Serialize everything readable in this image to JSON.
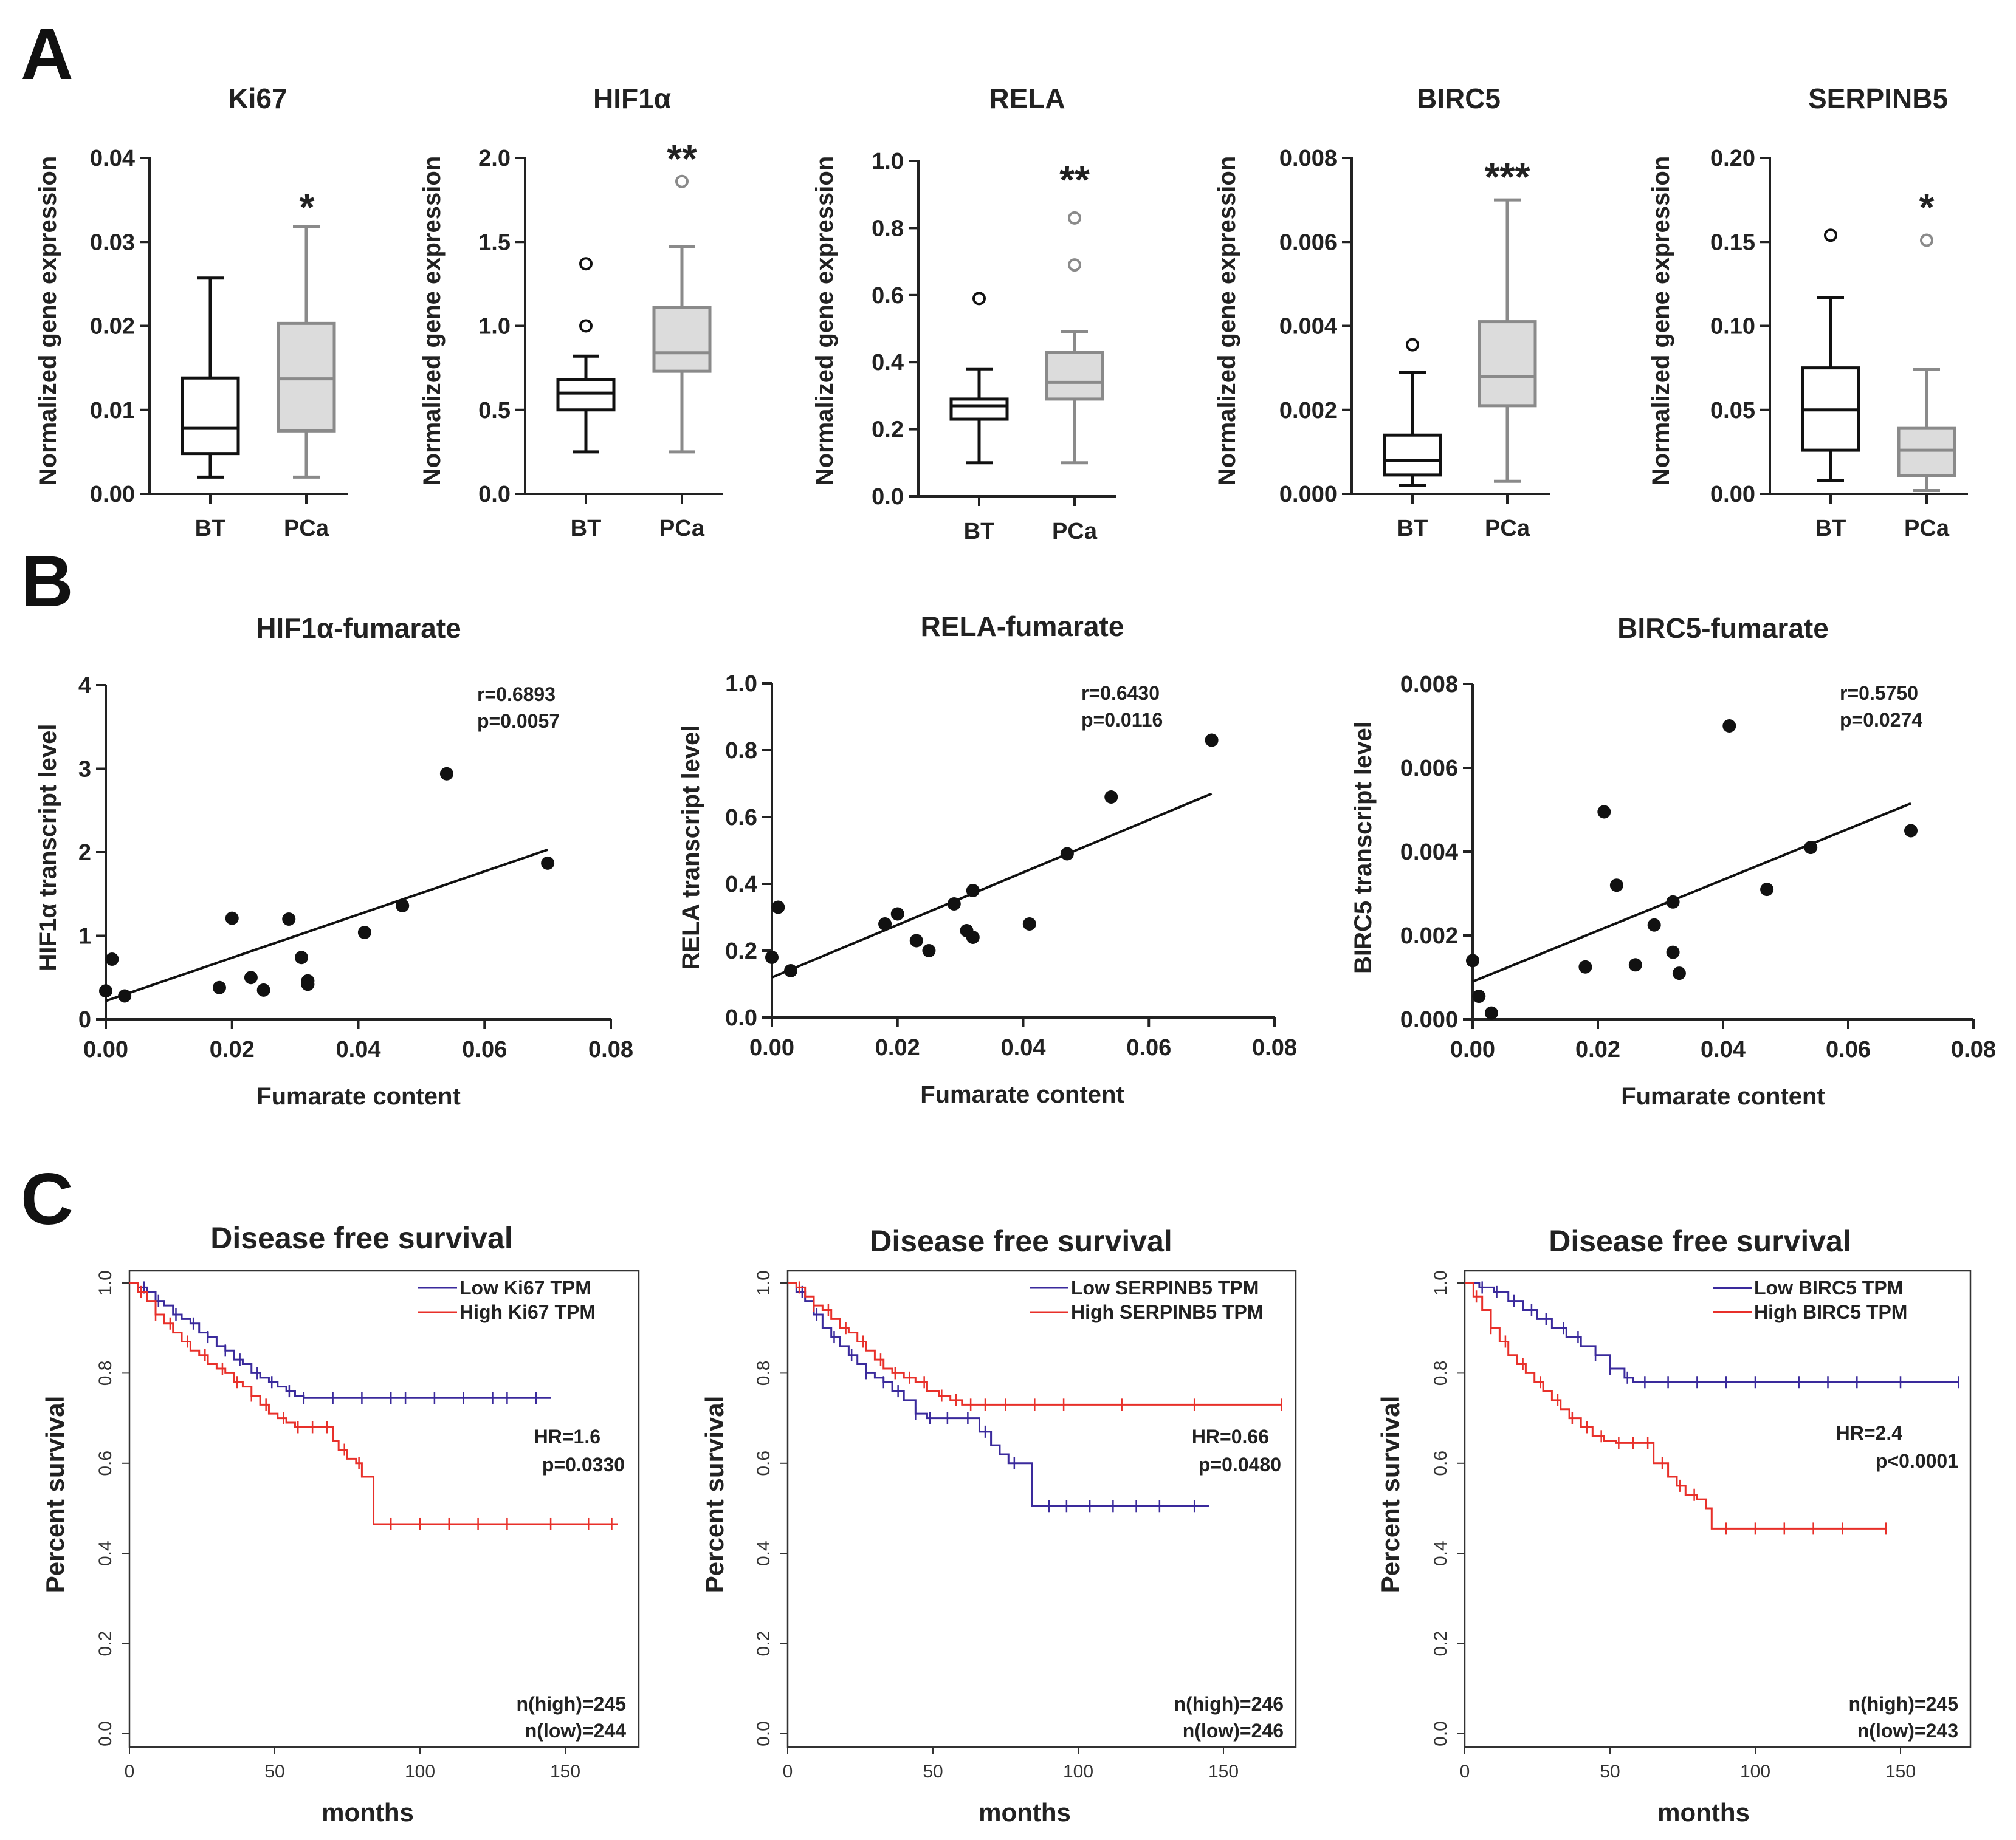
{
  "panel_letters": [
    "A",
    "B",
    "C"
  ],
  "chart_data": [
    {
      "type": "box",
      "panel": "A",
      "title": "Ki67",
      "ylabel": "Normalized gene expression",
      "categories": [
        "BT",
        "PCa"
      ],
      "ylim": [
        0,
        0.04
      ],
      "yticks": [
        "0.00",
        "0.01",
        "0.02",
        "0.03",
        "0.04"
      ],
      "significance": "*",
      "boxes": [
        {
          "name": "BT",
          "min": 0.002,
          "q1": 0.0048,
          "median": 0.0078,
          "q3": 0.0138,
          "max": 0.0257,
          "outliers": [],
          "color": "#111111",
          "fill": "#ffffff"
        },
        {
          "name": "PCa",
          "min": 0.002,
          "q1": 0.0075,
          "median": 0.0137,
          "q3": 0.0203,
          "max": 0.0318,
          "outliers": [],
          "color": "#8a8a8a",
          "fill": "#dcdcdc"
        }
      ]
    },
    {
      "type": "box",
      "panel": "A",
      "title": "HIF1α",
      "ylabel": "Normalized gene expression",
      "categories": [
        "BT",
        "PCa"
      ],
      "ylim": [
        0,
        2.0
      ],
      "yticks": [
        "0.0",
        "0.5",
        "1.0",
        "1.5",
        "2.0"
      ],
      "significance": "**",
      "boxes": [
        {
          "name": "BT",
          "min": 0.25,
          "q1": 0.5,
          "median": 0.6,
          "q3": 0.68,
          "max": 0.82,
          "outliers": [
            1.0,
            1.37
          ],
          "color": "#111111",
          "fill": "#ffffff"
        },
        {
          "name": "PCa",
          "min": 0.25,
          "q1": 0.73,
          "median": 0.84,
          "q3": 1.11,
          "max": 1.47,
          "outliers": [
            1.86
          ],
          "color": "#8a8a8a",
          "fill": "#dcdcdc"
        }
      ]
    },
    {
      "type": "box",
      "panel": "A",
      "title": "RELA",
      "ylabel": "Normalized gene expression",
      "categories": [
        "BT",
        "PCa"
      ],
      "ylim": [
        0,
        1.0
      ],
      "yticks": [
        "0.0",
        "0.2",
        "0.4",
        "0.6",
        "0.8",
        "1.0"
      ],
      "significance": "**",
      "boxes": [
        {
          "name": "BT",
          "min": 0.1,
          "q1": 0.23,
          "median": 0.27,
          "q3": 0.29,
          "max": 0.38,
          "outliers": [
            0.59
          ],
          "color": "#111111",
          "fill": "#ffffff"
        },
        {
          "name": "PCa",
          "min": 0.1,
          "q1": 0.29,
          "median": 0.34,
          "q3": 0.43,
          "max": 0.49,
          "outliers": [
            0.69,
            0.83
          ],
          "color": "#8a8a8a",
          "fill": "#dcdcdc"
        }
      ]
    },
    {
      "type": "box",
      "panel": "A",
      "title": "BIRC5",
      "ylabel": "Normalized gene expression",
      "categories": [
        "BT",
        "PCa"
      ],
      "ylim": [
        0,
        0.008
      ],
      "yticks": [
        "0.000",
        "0.002",
        "0.004",
        "0.006",
        "0.008"
      ],
      "significance": "***",
      "boxes": [
        {
          "name": "BT",
          "min": 0.0002,
          "q1": 0.00045,
          "median": 0.0008,
          "q3": 0.0014,
          "max": 0.0029,
          "outliers": [
            0.00355
          ],
          "color": "#111111",
          "fill": "#ffffff"
        },
        {
          "name": "PCa",
          "min": 0.0003,
          "q1": 0.0021,
          "median": 0.0028,
          "q3": 0.0041,
          "max": 0.007,
          "outliers": [],
          "color": "#8a8a8a",
          "fill": "#dcdcdc"
        }
      ]
    },
    {
      "type": "box",
      "panel": "A",
      "title": "SERPINB5",
      "ylabel": "Normalized gene expression",
      "categories": [
        "BT",
        "PCa"
      ],
      "ylim": [
        0,
        0.2
      ],
      "yticks": [
        "0.00",
        "0.05",
        "0.10",
        "0.15",
        "0.20"
      ],
      "significance": "*",
      "boxes": [
        {
          "name": "BT",
          "min": 0.008,
          "q1": 0.026,
          "median": 0.05,
          "q3": 0.075,
          "max": 0.117,
          "outliers": [
            0.154
          ],
          "color": "#111111",
          "fill": "#ffffff"
        },
        {
          "name": "PCa",
          "min": 0.002,
          "q1": 0.011,
          "median": 0.026,
          "q3": 0.039,
          "max": 0.074,
          "outliers": [
            0.151
          ],
          "color": "#8a8a8a",
          "fill": "#dcdcdc"
        }
      ]
    },
    {
      "type": "scatter",
      "panel": "B",
      "title": "HIF1α-fumarate",
      "xlabel": "Fumarate content",
      "ylabel": "HIF1α transcript level",
      "xlim": [
        0,
        0.08
      ],
      "ylim": [
        0,
        4
      ],
      "xticks": [
        "0.00",
        "0.02",
        "0.04",
        "0.06",
        "0.08"
      ],
      "yticks": [
        "0",
        "1",
        "2",
        "3",
        "4"
      ],
      "stats": [
        "r=0.6893",
        "p=0.0057"
      ],
      "x": [
        0,
        0.001,
        0.003,
        0.018,
        0.02,
        0.023,
        0.025,
        0.029,
        0.031,
        0.032,
        0.032,
        0.041,
        0.047,
        0.054,
        0.07
      ],
      "y": [
        0.34,
        0.72,
        0.28,
        0.38,
        1.21,
        0.5,
        0.35,
        1.2,
        0.74,
        0.46,
        0.42,
        1.04,
        1.36,
        2.94,
        1.87
      ],
      "fit": [
        [
          0,
          0.22
        ],
        [
          0.07,
          2.03
        ]
      ]
    },
    {
      "type": "scatter",
      "panel": "B",
      "title": "RELA-fumarate",
      "xlabel": "Fumarate content",
      "ylabel": "RELA transcript level",
      "xlim": [
        0,
        0.08
      ],
      "ylim": [
        0,
        1.0
      ],
      "xticks": [
        "0.00",
        "0.02",
        "0.04",
        "0.06",
        "0.08"
      ],
      "yticks": [
        "0.0",
        "0.2",
        "0.4",
        "0.6",
        "0.8",
        "1.0"
      ],
      "stats": [
        "r=0.6430",
        "p=0.0116"
      ],
      "x": [
        0,
        0.001,
        0.003,
        0.018,
        0.02,
        0.023,
        0.025,
        0.029,
        0.031,
        0.032,
        0.032,
        0.041,
        0.047,
        0.054,
        0.07
      ],
      "y": [
        0.18,
        0.33,
        0.14,
        0.28,
        0.31,
        0.23,
        0.2,
        0.34,
        0.26,
        0.24,
        0.38,
        0.28,
        0.49,
        0.66,
        0.83
      ],
      "fit": [
        [
          0,
          0.12
        ],
        [
          0.07,
          0.67
        ]
      ]
    },
    {
      "type": "scatter",
      "panel": "B",
      "title": "BIRC5-fumarate",
      "xlabel": "Fumarate content",
      "ylabel": "BIRC5 transcript level",
      "xlim": [
        0,
        0.08
      ],
      "ylim": [
        0,
        0.008
      ],
      "xticks": [
        "0.00",
        "0.02",
        "0.04",
        "0.06",
        "0.08"
      ],
      "yticks": [
        "0.000",
        "0.002",
        "0.004",
        "0.006",
        "0.008"
      ],
      "stats": [
        "r=0.5750",
        "p=0.0274"
      ],
      "x": [
        0,
        0.001,
        0.003,
        0.018,
        0.021,
        0.023,
        0.026,
        0.029,
        0.032,
        0.032,
        0.033,
        0.041,
        0.047,
        0.054,
        0.07
      ],
      "y": [
        0.0014,
        0.00055,
        0.00015,
        0.00125,
        0.00495,
        0.0032,
        0.0013,
        0.00225,
        0.0028,
        0.0016,
        0.0011,
        0.007,
        0.0031,
        0.0041,
        0.0045
      ],
      "fit": [
        [
          0,
          0.0009
        ],
        [
          0.07,
          0.00515
        ]
      ]
    },
    {
      "type": "line",
      "panel": "C",
      "title": "Disease free survival",
      "xlabel": "months",
      "ylabel": "Percent survival",
      "xlim": [
        0,
        175
      ],
      "ylim": [
        0,
        1.05
      ],
      "xticks": [
        "0",
        "50",
        "100",
        "150"
      ],
      "yticks": [
        "0.0",
        "0.2",
        "0.4",
        "0.6",
        "0.8",
        "1.0"
      ],
      "legend": [
        "Low Ki67 TPM",
        "High Ki67 TPM"
      ],
      "legend_colors": [
        "#3a2a9c",
        "#e8302a"
      ],
      "stats": [
        "HR=1.6",
        "p=0.0330"
      ],
      "counts": [
        "n(high)=245",
        "n(low)=244"
      ],
      "series": [
        {
          "name": "Low Ki67 TPM",
          "color": "#3a2a9c",
          "x": [
            0,
            3,
            6,
            9,
            12,
            15,
            18,
            21,
            24,
            27,
            30,
            33,
            36,
            39,
            42,
            45,
            48,
            51,
            54,
            57,
            60,
            145
          ],
          "y": [
            1.0,
            0.99,
            0.98,
            0.96,
            0.95,
            0.93,
            0.92,
            0.91,
            0.89,
            0.88,
            0.86,
            0.85,
            0.83,
            0.82,
            0.8,
            0.79,
            0.78,
            0.77,
            0.76,
            0.75,
            0.745,
            0.745
          ],
          "censor": [
            5,
            10,
            16,
            22,
            27,
            33,
            38,
            44,
            49,
            55,
            60,
            70,
            80,
            90,
            95,
            105,
            115,
            125,
            130,
            140
          ]
        },
        {
          "name": "High Ki67 TPM",
          "color": "#e8302a",
          "x": [
            0,
            3,
            6,
            9,
            12,
            15,
            18,
            21,
            24,
            27,
            30,
            33,
            36,
            39,
            42,
            45,
            48,
            51,
            54,
            57,
            60,
            66,
            70,
            72,
            75,
            78,
            80,
            83,
            84,
            168
          ],
          "y": [
            1.0,
            0.98,
            0.96,
            0.93,
            0.91,
            0.89,
            0.87,
            0.85,
            0.84,
            0.82,
            0.81,
            0.8,
            0.78,
            0.77,
            0.75,
            0.73,
            0.71,
            0.7,
            0.69,
            0.68,
            0.68,
            0.68,
            0.65,
            0.63,
            0.61,
            0.6,
            0.57,
            0.57,
            0.465,
            0.465
          ],
          "censor": [
            4,
            9,
            14,
            20,
            26,
            32,
            37,
            42,
            47,
            53,
            58,
            63,
            68,
            74,
            79,
            90,
            100,
            110,
            120,
            130,
            145,
            158,
            166
          ]
        }
      ]
    },
    {
      "type": "line",
      "panel": "C",
      "title": "Disease free survival",
      "xlabel": "months",
      "ylabel": "Percent survival",
      "xlim": [
        0,
        175
      ],
      "ylim": [
        0,
        1.05
      ],
      "xticks": [
        "0",
        "50",
        "100",
        "150"
      ],
      "yticks": [
        "0.0",
        "0.2",
        "0.4",
        "0.6",
        "0.8",
        "1.0"
      ],
      "legend": [
        "Low SERPINB5 TPM",
        "High SERPINB5 TPM"
      ],
      "legend_colors": [
        "#3a2a9c",
        "#e8302a"
      ],
      "stats": [
        "HR=0.66",
        "p=0.0480"
      ],
      "counts": [
        "n(high)=246",
        "n(low)=246"
      ],
      "series": [
        {
          "name": "Low SERPINB5 TPM",
          "color": "#3a2a9c",
          "x": [
            0,
            3,
            6,
            9,
            12,
            15,
            18,
            21,
            24,
            27,
            30,
            33,
            36,
            40,
            44,
            48,
            52,
            56,
            60,
            66,
            70,
            73,
            76,
            80,
            84,
            145
          ],
          "y": [
            1.0,
            0.98,
            0.96,
            0.93,
            0.9,
            0.88,
            0.86,
            0.84,
            0.82,
            0.8,
            0.79,
            0.78,
            0.76,
            0.74,
            0.71,
            0.7,
            0.7,
            0.7,
            0.7,
            0.67,
            0.64,
            0.62,
            0.6,
            0.6,
            0.505,
            0.505
          ],
          "censor": [
            5,
            10,
            16,
            22,
            27,
            33,
            38,
            44,
            49,
            55,
            62,
            68,
            78,
            90,
            96,
            104,
            112,
            120,
            128,
            140
          ]
        },
        {
          "name": "High SERPINB5 TPM",
          "color": "#e8302a",
          "x": [
            0,
            3,
            6,
            9,
            12,
            15,
            18,
            21,
            24,
            27,
            30,
            33,
            36,
            40,
            44,
            48,
            52,
            56,
            60,
            170
          ],
          "y": [
            1.0,
            0.99,
            0.97,
            0.95,
            0.94,
            0.92,
            0.9,
            0.89,
            0.87,
            0.85,
            0.83,
            0.81,
            0.8,
            0.79,
            0.78,
            0.76,
            0.75,
            0.74,
            0.73,
            0.73
          ],
          "censor": [
            4,
            9,
            14,
            20,
            26,
            32,
            37,
            42,
            47,
            53,
            58,
            63,
            68,
            75,
            85,
            95,
            115,
            140,
            170
          ]
        }
      ]
    },
    {
      "type": "line",
      "panel": "C",
      "title": "Disease free survival",
      "xlabel": "months",
      "ylabel": "Percent survival",
      "xlim": [
        0,
        175
      ],
      "ylim": [
        0,
        1.05
      ],
      "xticks": [
        "0",
        "50",
        "100",
        "150"
      ],
      "yticks": [
        "0.0",
        "0.2",
        "0.4",
        "0.6",
        "0.8",
        "1.0"
      ],
      "legend": [
        "Low BIRC5 TPM",
        "High BIRC5 TPM"
      ],
      "legend_colors": [
        "#3a2a9c",
        "#e8302a"
      ],
      "stats": [
        "HR=2.4",
        "p<0.0001"
      ],
      "counts": [
        "n(high)=245",
        "n(low)=243"
      ],
      "series": [
        {
          "name": "Low BIRC5 TPM",
          "color": "#3a2a9c",
          "x": [
            0,
            5,
            10,
            15,
            20,
            25,
            30,
            35,
            40,
            45,
            50,
            55,
            58,
            60,
            170
          ],
          "y": [
            1.0,
            0.99,
            0.98,
            0.96,
            0.94,
            0.92,
            0.9,
            0.88,
            0.86,
            0.84,
            0.81,
            0.79,
            0.78,
            0.78,
            0.78
          ],
          "censor": [
            6,
            11,
            17,
            23,
            28,
            34,
            39,
            45,
            50,
            56,
            62,
            70,
            80,
            90,
            100,
            115,
            125,
            135,
            150,
            170
          ]
        },
        {
          "name": "High BIRC5 TPM",
          "color": "#e8302a",
          "x": [
            0,
            3,
            6,
            9,
            12,
            15,
            18,
            21,
            24,
            27,
            30,
            33,
            36,
            40,
            44,
            48,
            52,
            56,
            60,
            65,
            70,
            73,
            76,
            80,
            83,
            85,
            145
          ],
          "y": [
            1.0,
            0.97,
            0.94,
            0.9,
            0.87,
            0.84,
            0.82,
            0.8,
            0.78,
            0.76,
            0.74,
            0.72,
            0.7,
            0.68,
            0.66,
            0.65,
            0.645,
            0.645,
            0.645,
            0.6,
            0.57,
            0.55,
            0.53,
            0.52,
            0.5,
            0.455,
            0.455
          ],
          "censor": [
            4,
            9,
            14,
            20,
            26,
            32,
            37,
            42,
            47,
            53,
            58,
            63,
            68,
            74,
            79,
            90,
            100,
            110,
            120,
            130,
            145
          ]
        }
      ]
    }
  ]
}
